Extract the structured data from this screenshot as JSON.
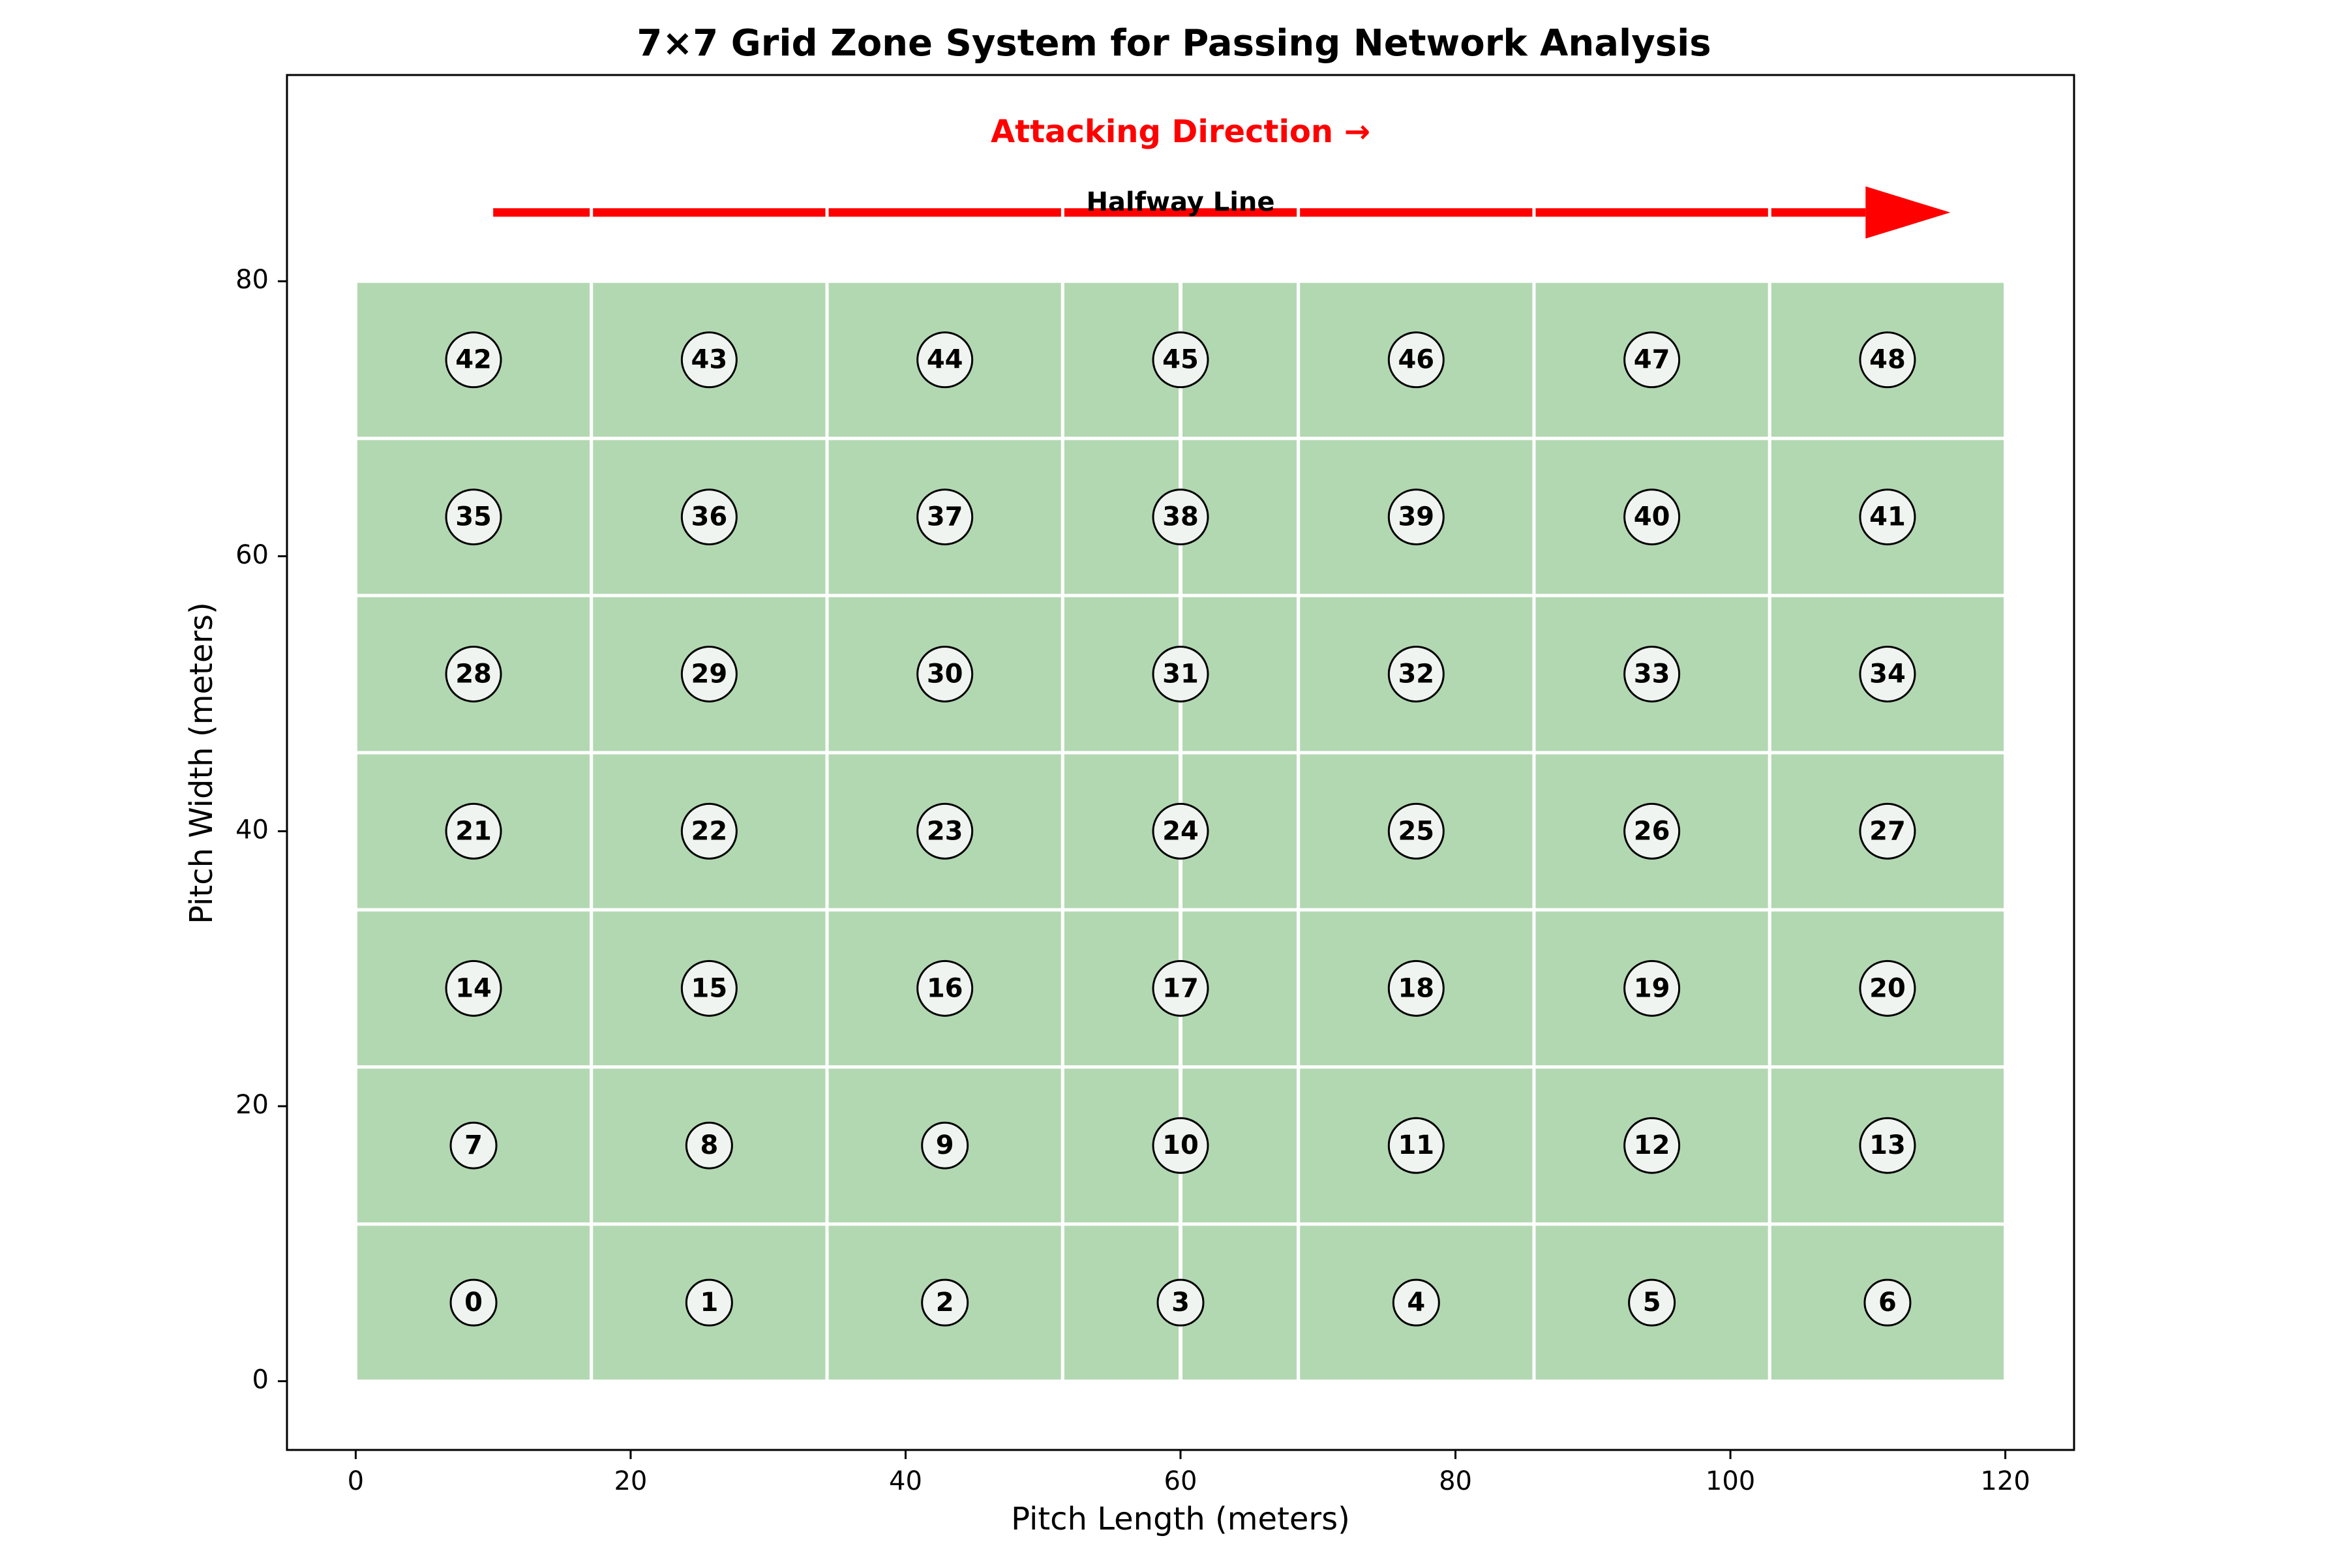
{
  "chart_data": {
    "type": "heatmap",
    "title": "7×7 Grid Zone System for Passing Network Analysis",
    "xlabel": "Pitch Length (meters)",
    "ylabel": "Pitch Width (meters)",
    "xlim": [
      -5,
      125
    ],
    "ylim": [
      -5,
      95
    ],
    "xticks": [
      0,
      20,
      40,
      60,
      80,
      100,
      120
    ],
    "yticks": [
      0,
      20,
      40,
      60,
      80
    ],
    "pitch": {
      "length": 120,
      "width": 80
    },
    "grid": {
      "cols": 7,
      "rows": 7
    },
    "zones": [
      0,
      1,
      2,
      3,
      4,
      5,
      6,
      7,
      8,
      9,
      10,
      11,
      12,
      13,
      14,
      15,
      16,
      17,
      18,
      19,
      20,
      21,
      22,
      23,
      24,
      25,
      26,
      27,
      28,
      29,
      30,
      31,
      32,
      33,
      34,
      35,
      36,
      37,
      38,
      39,
      40,
      41,
      42,
      43,
      44,
      45,
      46,
      47,
      48
    ],
    "halfway_line": {
      "x": 60,
      "label": "Halfway Line"
    },
    "direction": {
      "label": "Attacking Direction →",
      "x_start": 10,
      "x_end": 116,
      "y": 85
    },
    "colors": {
      "pitch_fill": "#b2d8b2",
      "grid_lines": "#ffffff",
      "arrow": "#ff0000",
      "zone_circle_fill": "#f0f4f0",
      "zone_circle_stroke": "#000000",
      "text": "#000000"
    }
  }
}
